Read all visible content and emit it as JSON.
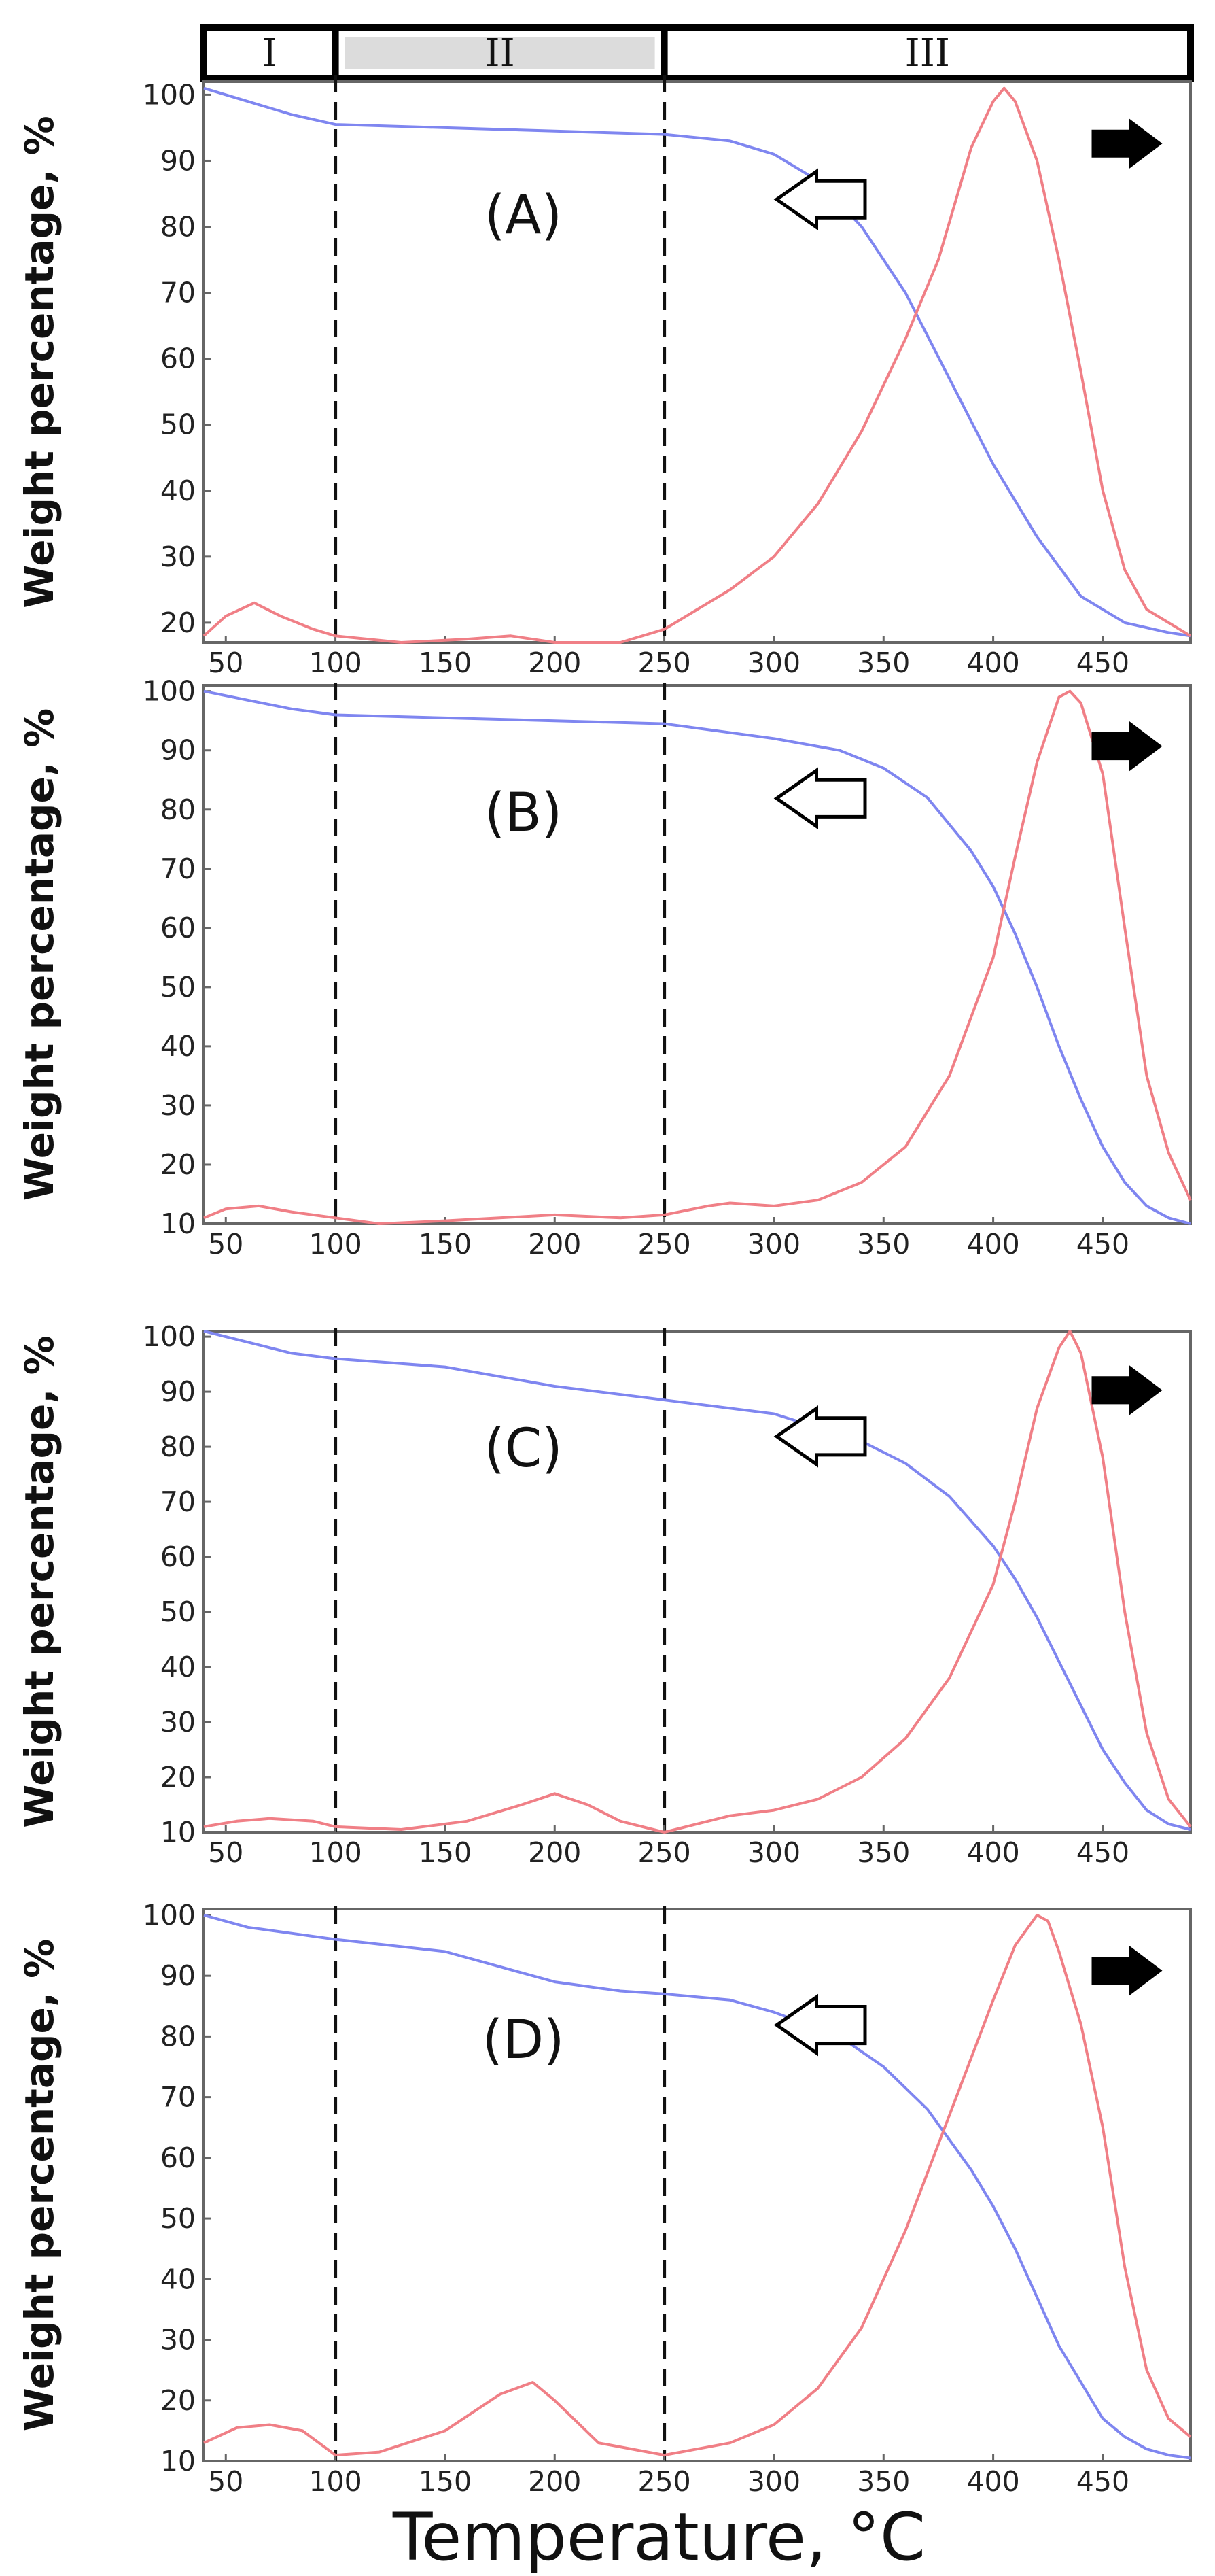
{
  "regions": [
    {
      "label": "I",
      "from": 40,
      "to": 100,
      "shaded": false
    },
    {
      "label": "II",
      "from": 100,
      "to": 250,
      "shaded": true
    },
    {
      "label": "III",
      "from": 250,
      "to": 490,
      "shaded": false
    }
  ],
  "x_axis_label": "Temperature, °C",
  "colors": {
    "weight": "#7f86f0",
    "dtg": "#f07f86",
    "divider": "#111111",
    "frame": "#666666"
  },
  "chart_data": [
    {
      "type": "line",
      "panel_label": "(A)",
      "ylabel": "Weight percentage, %",
      "xlim": [
        40,
        490
      ],
      "ylim": [
        17,
        102
      ],
      "xticks": [
        50,
        100,
        150,
        200,
        250,
        300,
        350,
        400,
        450
      ],
      "yticks": [
        20,
        30,
        40,
        50,
        60,
        70,
        80,
        90,
        100
      ],
      "dividers": [
        100,
        250
      ],
      "series": [
        {
          "role": "weight",
          "x": [
            40,
            60,
            80,
            100,
            150,
            200,
            250,
            280,
            300,
            320,
            340,
            360,
            380,
            400,
            420,
            440,
            460,
            480,
            490
          ],
          "y": [
            101,
            99,
            97,
            95.5,
            95,
            94.5,
            94,
            93,
            91,
            87,
            80,
            70,
            57,
            44,
            33,
            24,
            20,
            18.5,
            18
          ]
        },
        {
          "role": "dtg",
          "x": [
            40,
            50,
            63,
            75,
            90,
            100,
            130,
            160,
            180,
            200,
            230,
            250,
            280,
            300,
            320,
            340,
            360,
            375,
            390,
            400,
            405,
            410,
            420,
            430,
            440,
            450,
            460,
            470,
            480,
            490
          ],
          "y": [
            18,
            21,
            23,
            21,
            19,
            18,
            17,
            17.5,
            18,
            17,
            17,
            19,
            25,
            30,
            38,
            49,
            63,
            75,
            92,
            99,
            101,
            99,
            90,
            75,
            58,
            40,
            28,
            22,
            20,
            18
          ]
        }
      ]
    },
    {
      "type": "line",
      "panel_label": "(B)",
      "ylabel": "Weight percentage, %",
      "xlim": [
        40,
        490
      ],
      "ylim": [
        10,
        101
      ],
      "xticks": [
        50,
        100,
        150,
        200,
        250,
        300,
        350,
        400,
        450
      ],
      "yticks": [
        10,
        20,
        30,
        40,
        50,
        60,
        70,
        80,
        90,
        100
      ],
      "dividers": [
        100,
        250
      ],
      "series": [
        {
          "role": "weight",
          "x": [
            40,
            60,
            80,
            100,
            150,
            200,
            250,
            300,
            330,
            350,
            370,
            390,
            400,
            410,
            420,
            430,
            440,
            450,
            460,
            470,
            480,
            490
          ],
          "y": [
            100,
            98.5,
            97,
            96,
            95.5,
            95,
            94.5,
            92,
            90,
            87,
            82,
            73,
            67,
            59,
            50,
            40,
            31,
            23,
            17,
            13,
            11,
            10
          ]
        },
        {
          "role": "dtg",
          "x": [
            40,
            50,
            65,
            80,
            100,
            120,
            150,
            200,
            230,
            250,
            270,
            280,
            300,
            320,
            340,
            360,
            380,
            400,
            410,
            420,
            430,
            435,
            440,
            450,
            460,
            470,
            480,
            490
          ],
          "y": [
            11,
            12.5,
            13,
            12,
            11,
            10,
            10.5,
            11.5,
            11,
            11.5,
            13,
            13.5,
            13,
            14,
            17,
            23,
            35,
            55,
            72,
            88,
            99,
            100,
            98,
            86,
            60,
            35,
            22,
            14
          ]
        }
      ]
    },
    {
      "type": "line",
      "panel_label": "(C)",
      "ylabel": "Weight percentage, %",
      "xlim": [
        40,
        490
      ],
      "ylim": [
        10,
        101
      ],
      "xticks": [
        50,
        100,
        150,
        200,
        250,
        300,
        350,
        400,
        450
      ],
      "yticks": [
        10,
        20,
        30,
        40,
        50,
        60,
        70,
        80,
        90,
        100
      ],
      "dividers": [
        100,
        250
      ],
      "series": [
        {
          "role": "weight",
          "x": [
            40,
            60,
            80,
            100,
            150,
            200,
            250,
            300,
            340,
            360,
            380,
            400,
            410,
            420,
            430,
            440,
            450,
            460,
            470,
            480,
            490
          ],
          "y": [
            101,
            99,
            97,
            96,
            94.5,
            91,
            88.5,
            86,
            81,
            77,
            71,
            62,
            56,
            49,
            41,
            33,
            25,
            19,
            14,
            11.5,
            10.5
          ]
        },
        {
          "role": "dtg",
          "x": [
            40,
            55,
            70,
            90,
            100,
            130,
            160,
            185,
            200,
            215,
            230,
            250,
            280,
            300,
            320,
            340,
            360,
            380,
            400,
            410,
            420,
            430,
            435,
            440,
            450,
            460,
            470,
            480,
            490
          ],
          "y": [
            11,
            12,
            12.5,
            12,
            11,
            10.5,
            12,
            15,
            17,
            15,
            12,
            10,
            13,
            14,
            16,
            20,
            27,
            38,
            55,
            70,
            87,
            98,
            101,
            97,
            78,
            50,
            28,
            16,
            11
          ]
        }
      ]
    },
    {
      "type": "line",
      "panel_label": "(D)",
      "ylabel": "Weight percentage, %",
      "xlim": [
        40,
        490
      ],
      "ylim": [
        10,
        101
      ],
      "xticks": [
        50,
        100,
        150,
        200,
        250,
        300,
        350,
        400,
        450
      ],
      "yticks": [
        10,
        20,
        30,
        40,
        50,
        60,
        70,
        80,
        90,
        100
      ],
      "dividers": [
        100,
        250
      ],
      "series": [
        {
          "role": "weight",
          "x": [
            40,
            60,
            80,
            100,
            150,
            200,
            230,
            250,
            280,
            300,
            330,
            350,
            370,
            390,
            400,
            410,
            420,
            430,
            440,
            450,
            460,
            470,
            480,
            490
          ],
          "y": [
            100,
            98,
            97,
            96,
            94,
            89,
            87.5,
            87,
            86,
            84,
            80,
            75,
            68,
            58,
            52,
            45,
            37,
            29,
            23,
            17,
            14,
            12,
            11,
            10.5
          ]
        },
        {
          "role": "dtg",
          "x": [
            40,
            55,
            70,
            85,
            100,
            120,
            150,
            175,
            190,
            200,
            220,
            250,
            280,
            300,
            320,
            340,
            360,
            380,
            400,
            410,
            420,
            425,
            430,
            440,
            450,
            460,
            470,
            480,
            490
          ],
          "y": [
            13,
            15.5,
            16,
            15,
            11,
            11.5,
            15,
            21,
            23,
            20,
            13,
            11,
            13,
            16,
            22,
            32,
            48,
            67,
            86,
            95,
            100,
            99,
            94,
            82,
            65,
            42,
            25,
            17,
            14
          ]
        }
      ]
    }
  ]
}
